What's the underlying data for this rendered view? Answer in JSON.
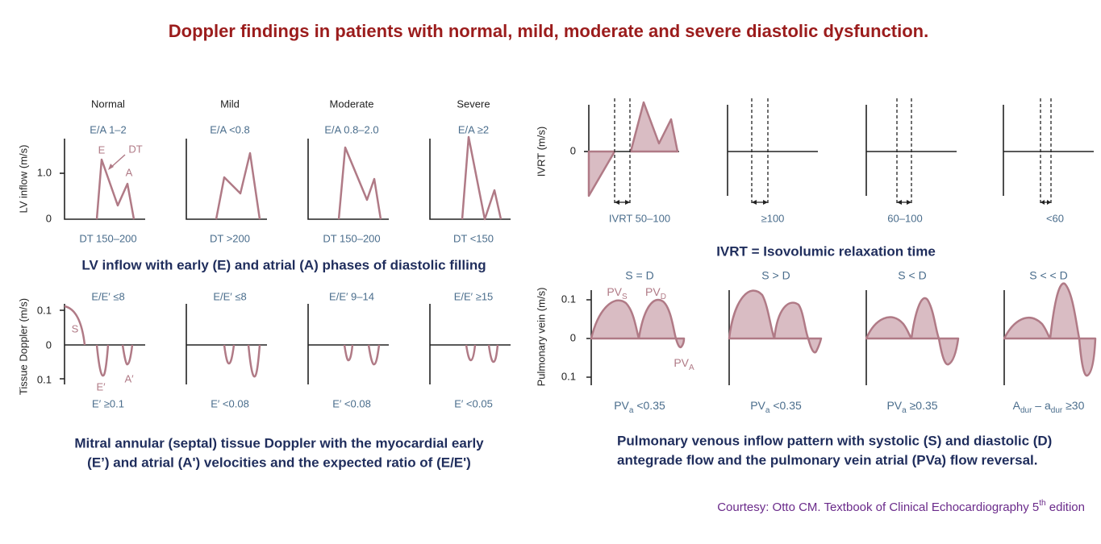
{
  "title": "Doppler findings in patients with normal, mild, moderate and severe diastolic dysfunction.",
  "lv_inflow": {
    "y_label": "LV inflow (m/s)",
    "y_ticks": [
      "1.0",
      "0"
    ],
    "columns": [
      "Normal",
      "Mild",
      "Moderate",
      "Severe"
    ],
    "ratios": [
      "E/A 1–2",
      "E/A <0.8",
      "E/A 0.8–2.0",
      "E/A ≥2"
    ],
    "deceleration_times": [
      "DT 150–200",
      "DT >200",
      "DT 150–200",
      "DT <150"
    ],
    "wave_labels": [
      "E",
      "DT",
      "A"
    ],
    "caption": "LV inflow with early (E) and atrial (A) phases of diastolic filling"
  },
  "tissue_doppler": {
    "y_label": "Tissue Doppler (m/s)",
    "y_ticks": [
      "0.1",
      "0",
      "0.1"
    ],
    "ratios": [
      "E/E′ ≤8",
      "E/E′ ≤8",
      "E/E′ 9–14",
      "E/E′ ≥15"
    ],
    "velocities": [
      "E′ ≥0.1",
      "E′ <0.08",
      "E′ <0.08",
      "E′ <0.05"
    ],
    "wave_labels": [
      "S",
      "E′",
      "A′"
    ],
    "caption": [
      "Mitral annular (septal) tissue Doppler with the myocardial early",
      "(E’) and atrial (A') velocities and the expected ratio of (E/E')"
    ]
  },
  "ivrt": {
    "y_label": "IVRT (m/s)",
    "y_ticks": [
      "0"
    ],
    "values": [
      "IVRT 50–100",
      "≥100",
      "60–100",
      "<60"
    ],
    "caption": "IVRT = Isovolumic relaxation time"
  },
  "pulmonary_vein": {
    "y_label": "Pulmonary vein (m/s)",
    "y_ticks": [
      "0.1",
      "0",
      "0.1"
    ],
    "headers": [
      "S = D",
      "S > D",
      "S < D",
      "S < < D"
    ],
    "wave_labels": [
      [
        {
          "text": "PV"
        },
        {
          "text": "S",
          "sub": true
        }
      ],
      [
        {
          "text": "PV"
        },
        {
          "text": "D",
          "sub": true
        }
      ],
      [
        {
          "text": "PV"
        },
        {
          "text": "A",
          "sub": true
        }
      ]
    ],
    "values": [
      [
        {
          "text": "PV"
        },
        {
          "text": "a",
          "sub": true
        },
        {
          "text": " <0.35"
        }
      ],
      [
        {
          "text": "PV"
        },
        {
          "text": "a",
          "sub": true
        },
        {
          "text": " <0.35"
        }
      ],
      [
        {
          "text": "PV"
        },
        {
          "text": "a",
          "sub": true
        },
        {
          "text": " ≥0.35"
        }
      ],
      [
        {
          "text": "A"
        },
        {
          "text": "dur",
          "sub": true
        },
        {
          "text": " – a"
        },
        {
          "text": "dur",
          "sub": true
        },
        {
          "text": " ≥30"
        }
      ]
    ],
    "caption": [
      "Pulmonary venous inflow pattern with systolic (S) and diastolic (D)",
      "antegrade flow and the pulmonary vein atrial (PVa) flow reversal."
    ]
  },
  "courtesy": [
    {
      "text": "Courtesy: Otto CM. Textbook of Clinical Echocardiography 5"
    },
    {
      "text": "th",
      "sup": true
    },
    {
      "text": " edition"
    }
  ]
}
